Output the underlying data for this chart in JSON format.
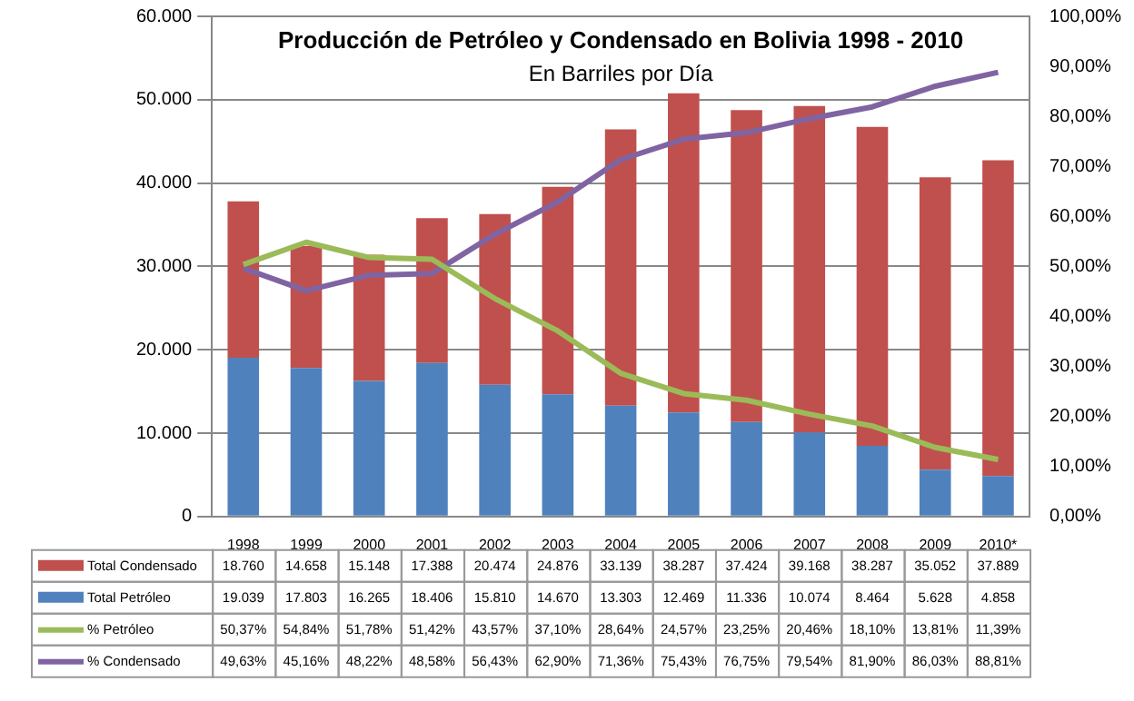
{
  "chart_data": {
    "type": "bar",
    "stacked": true,
    "title": "Producción de Petróleo y Condensado en Bolivia 1998 - 2010",
    "subtitle": "En Barriles por Día",
    "categories": [
      "1998",
      "1999",
      "2000",
      "2001",
      "2002",
      "2003",
      "2004",
      "2005",
      "2006",
      "2007",
      "2008",
      "2009",
      "2010*"
    ],
    "series": [
      {
        "name": "Total Petróleo",
        "color": "#4f81bd",
        "values": [
          19039,
          17803,
          16265,
          18406,
          15810,
          14670,
          13303,
          12469,
          11336,
          10074,
          8464,
          5628,
          4858
        ],
        "value_labels": [
          "19.039",
          "17.803",
          "16.265",
          "18.406",
          "15.810",
          "14.670",
          "13.303",
          "12.469",
          "11.336",
          "10.074",
          "8.464",
          "5.628",
          "4.858"
        ]
      },
      {
        "name": "Total Condensado",
        "color": "#c0504d",
        "values": [
          18760,
          14658,
          15148,
          17388,
          20474,
          24876,
          33139,
          38287,
          37424,
          39168,
          38287,
          35052,
          37889
        ],
        "value_labels": [
          "18.760",
          "14.658",
          "15.148",
          "17.388",
          "20.474",
          "24.876",
          "33.139",
          "38.287",
          "37.424",
          "39.168",
          "38.287",
          "35.052",
          "37.889"
        ]
      },
      {
        "name": "% Petróleo",
        "type": "line",
        "axis": "y2",
        "color": "#9bbb59",
        "values": [
          50.37,
          54.84,
          51.78,
          51.42,
          43.57,
          37.1,
          28.64,
          24.57,
          23.25,
          20.46,
          18.1,
          13.81,
          11.39
        ],
        "value_labels": [
          "50,37%",
          "54,84%",
          "51,78%",
          "51,42%",
          "43,57%",
          "37,10%",
          "28,64%",
          "24,57%",
          "23,25%",
          "20,46%",
          "18,10%",
          "13,81%",
          "11,39%"
        ]
      },
      {
        "name": "% Condensado",
        "type": "line",
        "axis": "y2",
        "color": "#8064a2",
        "values": [
          49.63,
          45.16,
          48.22,
          48.58,
          56.43,
          62.9,
          71.36,
          75.43,
          76.75,
          79.54,
          81.9,
          86.03,
          88.81
        ],
        "value_labels": [
          "49,63%",
          "45,16%",
          "48,22%",
          "48,58%",
          "56,43%",
          "62,90%",
          "71,36%",
          "75,43%",
          "76,75%",
          "79,54%",
          "81,90%",
          "86,03%",
          "88,81%"
        ]
      }
    ],
    "ylim": [
      0,
      60000
    ],
    "yticks": [
      {
        "value": 0,
        "label": "0"
      },
      {
        "value": 10000,
        "label": "10.000"
      },
      {
        "value": 20000,
        "label": "20.000"
      },
      {
        "value": 30000,
        "label": "30.000"
      },
      {
        "value": 40000,
        "label": "40.000"
      },
      {
        "value": 50000,
        "label": "50.000"
      },
      {
        "value": 60000,
        "label": "60.000"
      }
    ],
    "y2lim": [
      0,
      100
    ],
    "y2ticks": [
      {
        "value": 0,
        "label": "0,00%"
      },
      {
        "value": 10,
        "label": "10,00%"
      },
      {
        "value": 20,
        "label": "20,00%"
      },
      {
        "value": 30,
        "label": "30,00%"
      },
      {
        "value": 40,
        "label": "40,00%"
      },
      {
        "value": 50,
        "label": "50,00%"
      },
      {
        "value": 60,
        "label": "60,00%"
      },
      {
        "value": 70,
        "label": "70,00%"
      },
      {
        "value": 80,
        "label": "80,00%"
      },
      {
        "value": 90,
        "label": "90,00%"
      },
      {
        "value": 100,
        "label": "100,00%"
      }
    ],
    "grid": "y",
    "legend": "bottom",
    "marker": "none",
    "line_style": "solid"
  }
}
